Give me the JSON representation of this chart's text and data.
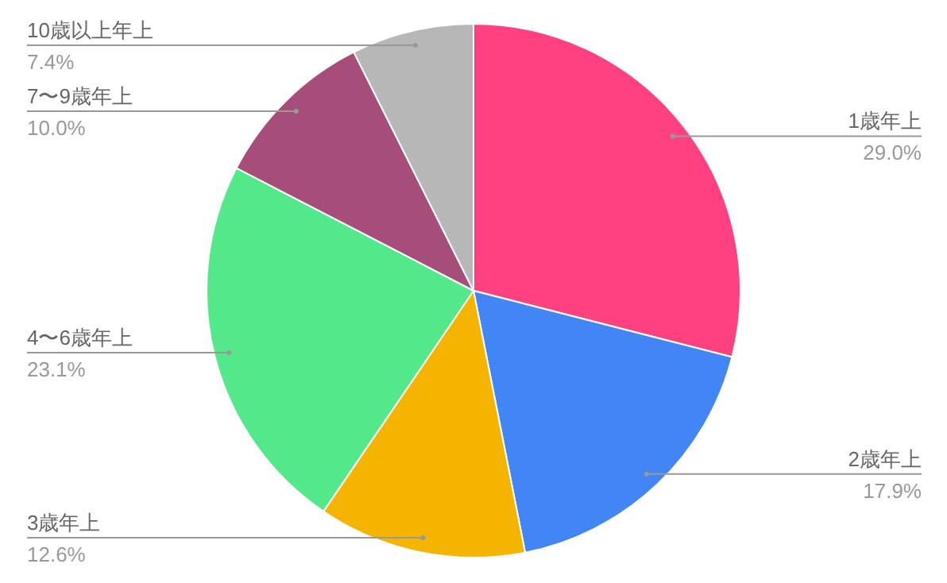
{
  "chart_data": {
    "type": "pie",
    "categories": [
      "1歳年上",
      "2歳年上",
      "3歳年上",
      "4〜6歳年上",
      "7〜9歳年上",
      "10歳以上年上"
    ],
    "values": [
      29.0,
      17.9,
      12.6,
      23.1,
      10.0,
      7.4
    ],
    "colors": [
      "#ff4081",
      "#4285f4",
      "#f4b400",
      "#53e88a",
      "#a64d79",
      "#b7b7b7"
    ],
    "value_labels": [
      "29.0%",
      "17.9%",
      "12.6%",
      "23.1%",
      "10.0%",
      "7.4%"
    ]
  }
}
